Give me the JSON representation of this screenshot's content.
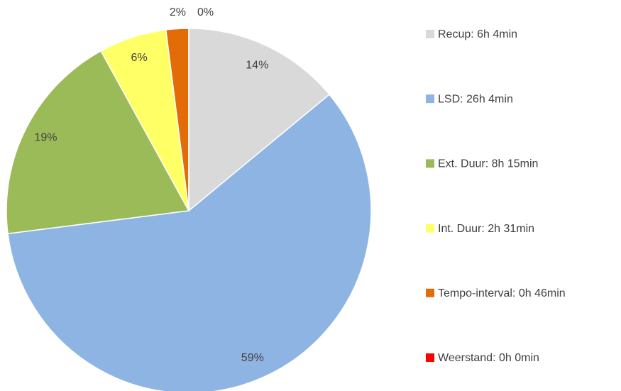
{
  "chart_data": {
    "type": "pie",
    "categories": [
      "Recup: 6h 4min",
      "LSD: 26h 4min",
      "Ext. Duur: 8h 15min",
      "Int. Duur: 2h 31min",
      "Tempo-interval: 0h 46min",
      "Weerstand: 0h 0min"
    ],
    "values": [
      14,
      59,
      19,
      6,
      2,
      0
    ],
    "value_labels": [
      "14%",
      "59%",
      "19%",
      "6%",
      "2%",
      "0%"
    ],
    "colors": [
      "#d9d9d9",
      "#8eb4e3",
      "#9bbb59",
      "#ffff66",
      "#e36c09",
      "#ff0000"
    ],
    "legend": "right"
  }
}
